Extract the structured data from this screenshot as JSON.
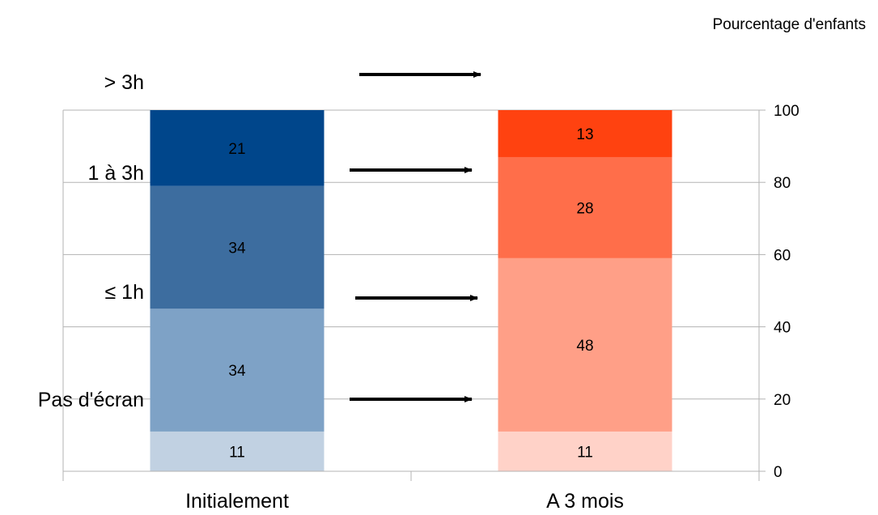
{
  "chart_data": {
    "type": "bar",
    "stacked": true,
    "categories": [
      "Initialement",
      "A 3 mois"
    ],
    "series": [
      {
        "name": "Pas d'écran",
        "values": [
          11,
          11
        ],
        "colors": [
          "#c1d1e2",
          "#ffd2c8"
        ]
      },
      {
        "name": "≤ 1h",
        "values": [
          34,
          48
        ],
        "colors": [
          "#7ea2c6",
          "#ff9f87"
        ]
      },
      {
        "name": "1 à 3h",
        "values": [
          34,
          28
        ],
        "colors": [
          "#3d6d9f",
          "#ff6e4a"
        ]
      },
      {
        "name": "> 3h",
        "values": [
          21,
          13
        ],
        "colors": [
          "#00468b",
          "#ff4210"
        ]
      }
    ],
    "value_labels": [
      [
        "11",
        "34",
        "34",
        "21"
      ],
      [
        "11",
        "48",
        "28",
        "13"
      ]
    ],
    "ylabel": "Pourcentage d'enfants",
    "ylim": [
      0,
      100
    ],
    "yticks": [
      0,
      20,
      40,
      60,
      80,
      100
    ],
    "y_axis_side": "right",
    "grid": true,
    "legend_placement": "left, as row labels with arrows between bars",
    "legend_labels": [
      "> 3h",
      "1 à 3h",
      "≤ 1h",
      "Pas d'écran"
    ]
  }
}
